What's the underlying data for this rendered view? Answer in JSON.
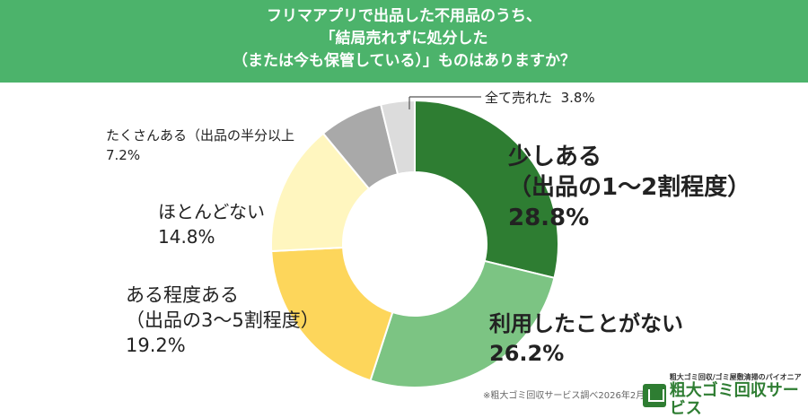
{
  "header": {
    "line1": "フリマアプリで出品した不用品のうち、",
    "line2": "「結局売れずに処分した",
    "line3": "（または今も保管している）」ものはありますか？"
  },
  "chart_data": {
    "type": "pie",
    "slices": [
      {
        "label_lines": [
          "少しある",
          "（出品の1〜2割程度）"
        ],
        "value": 28.8,
        "display": "28.8%",
        "color": "#2e7d32"
      },
      {
        "label_lines": [
          "利用したことがない"
        ],
        "value": 26.2,
        "display": "26.2%",
        "color": "#7cc483"
      },
      {
        "label_lines": [
          "ある程度ある",
          "（出品の3〜5割程度）"
        ],
        "value": 19.2,
        "display": "19.2%",
        "color": "#fdd65b"
      },
      {
        "label_lines": [
          "ほとんどない"
        ],
        "value": 14.8,
        "display": "14.8%",
        "color": "#fff6bf"
      },
      {
        "label_lines": [
          "たくさんある（出品の半分以上"
        ],
        "value": 7.2,
        "display": "7.2%",
        "color": "#a9a9a9"
      },
      {
        "label_lines": [
          "全て売れた"
        ],
        "value": 3.8,
        "display": "3.8%",
        "color": "#dcdcdc"
      }
    ]
  },
  "source": "※粗大ゴミ回収サービス調べ2026年2月",
  "logo": {
    "tagline": "粗大ゴミ回収/ゴミ屋敷清掃のパイオニア",
    "name": "粗大ゴミ回収サービス",
    "icon": "truck-icon"
  }
}
